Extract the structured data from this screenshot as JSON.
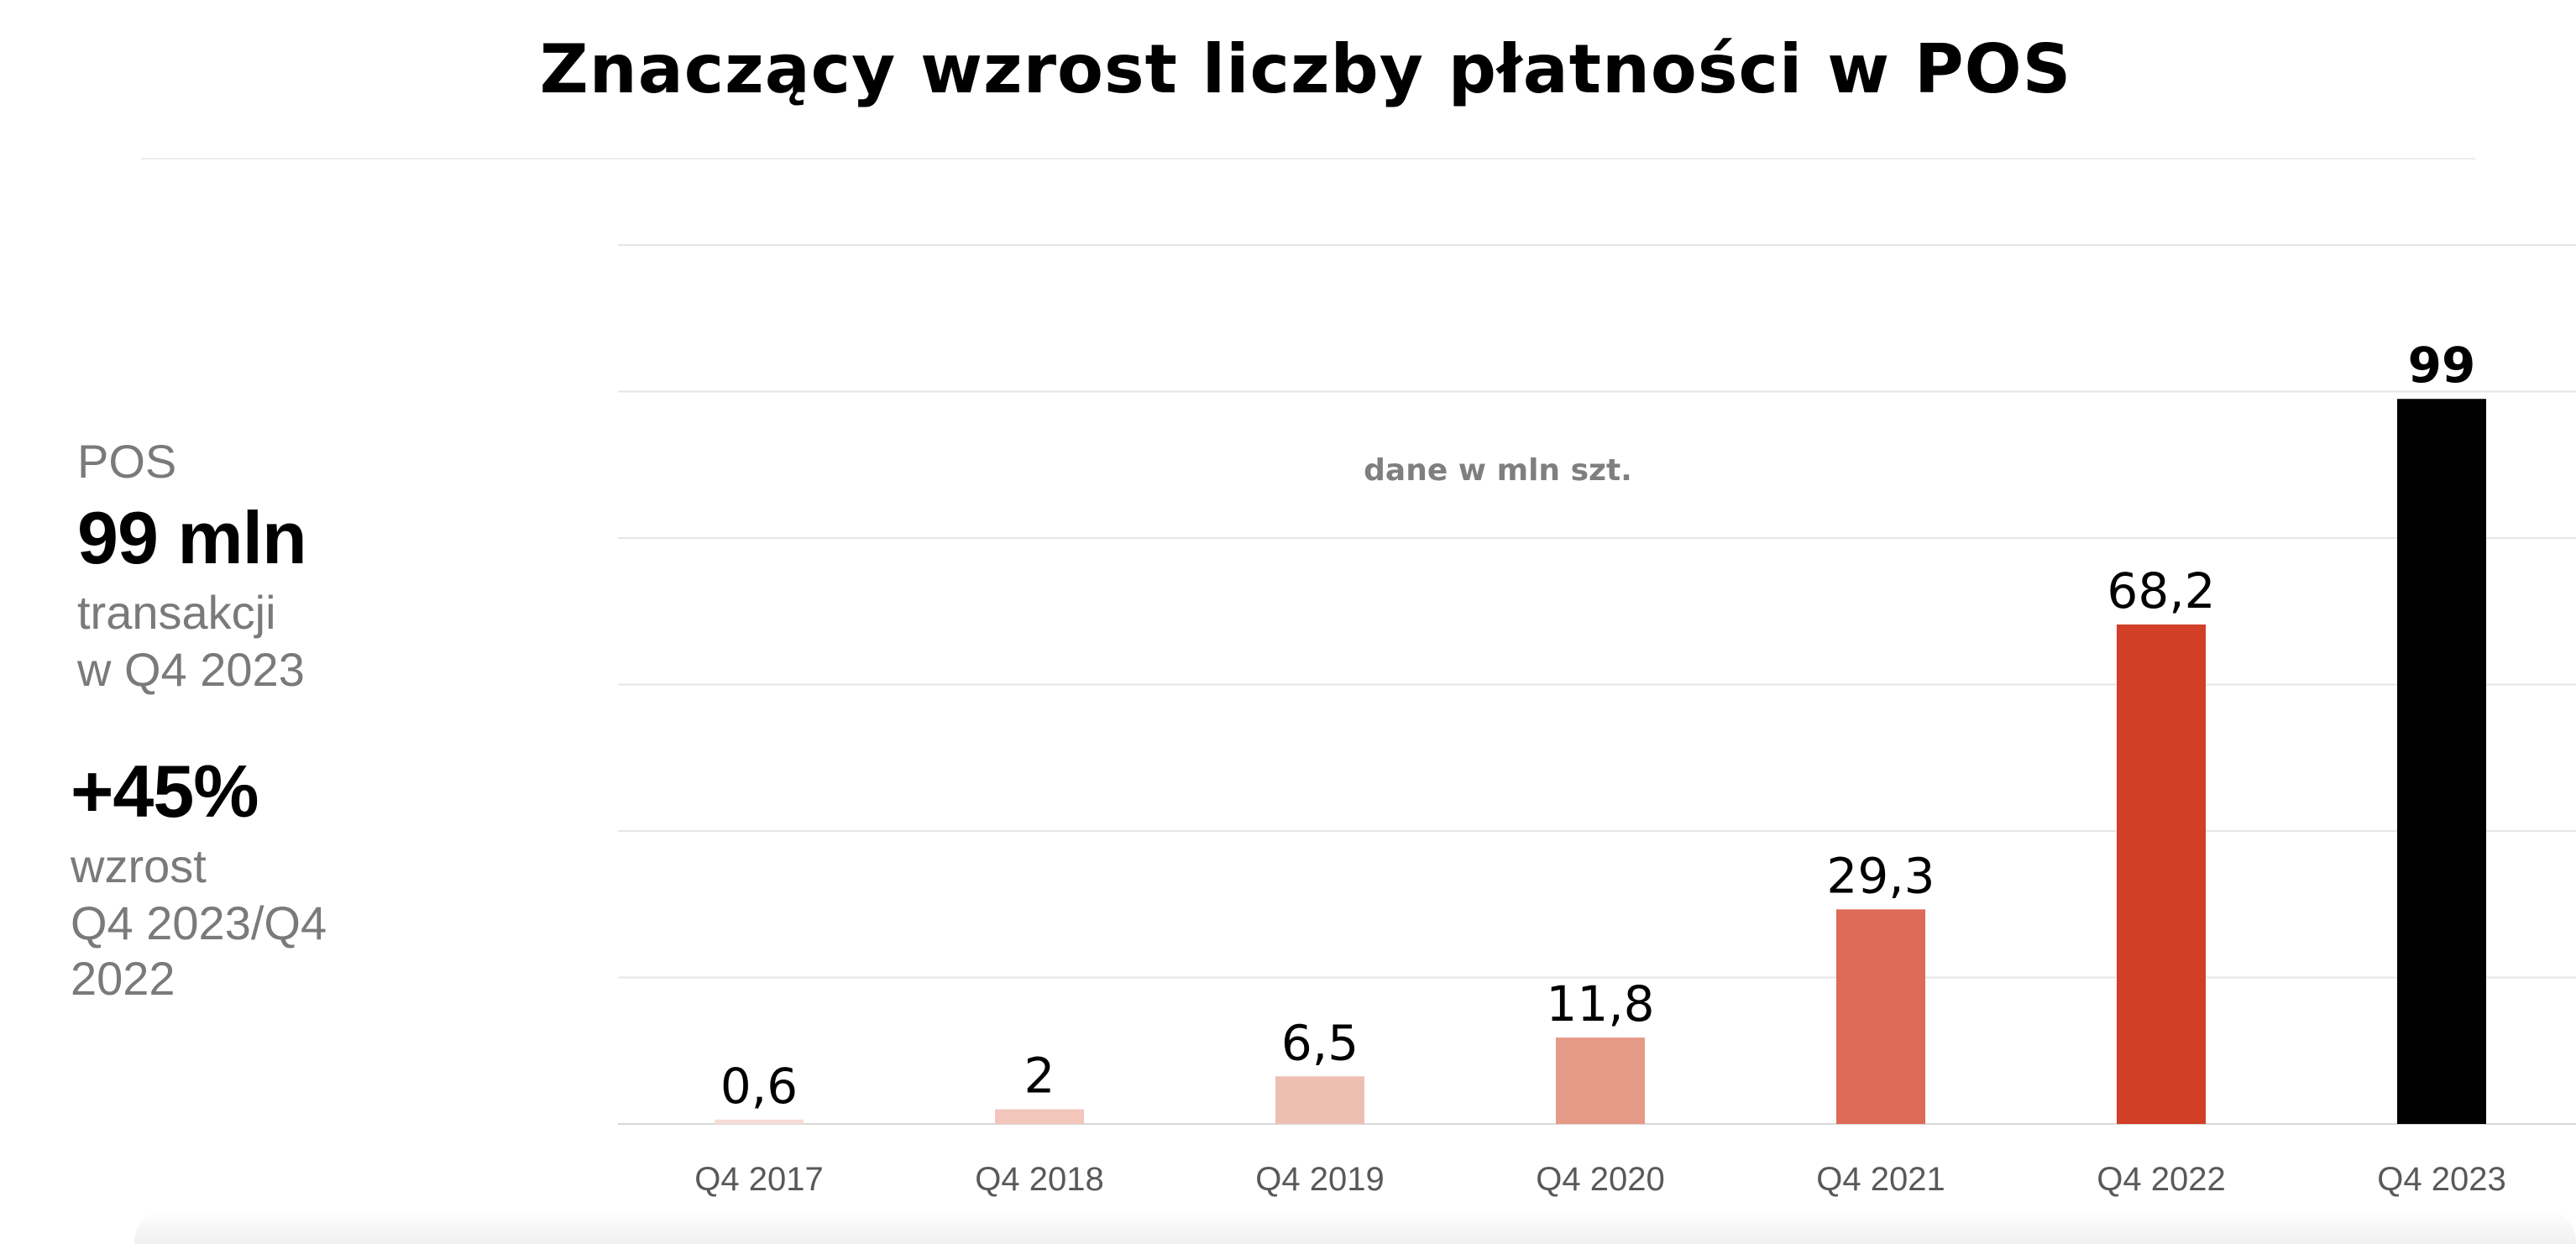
{
  "title": "Znaczący wzrost liczby płatności w POS",
  "side": {
    "label1": "POS",
    "value1": "99 mln",
    "desc1_line1": "transakcji",
    "desc1_line2": "w Q4 2023",
    "value2": "+45%",
    "desc2_line1": "wzrost",
    "desc2_line2": "Q4 2023/Q4",
    "desc2_line3": "2022"
  },
  "chart_data": {
    "type": "bar",
    "annotation": "dane w mln szt.",
    "categories": [
      "Q4 2017",
      "Q4 2018",
      "Q4 2019",
      "Q4 2020",
      "Q4 2021",
      "Q4 2022",
      "Q4 2023"
    ],
    "values": [
      0.6,
      2,
      6.5,
      11.8,
      29.3,
      68.2,
      99
    ],
    "value_labels": [
      "0,6",
      "2",
      "6,5",
      "11,8",
      "29,3",
      "68,2",
      "99"
    ],
    "colors": [
      "#f6dcd5",
      "#f2c6bb",
      "#edbfb3",
      "#e59a88",
      "#de6b57",
      "#d13f27",
      "#000000"
    ],
    "ylim": [
      0,
      120
    ],
    "grid": true,
    "legend": "none"
  }
}
